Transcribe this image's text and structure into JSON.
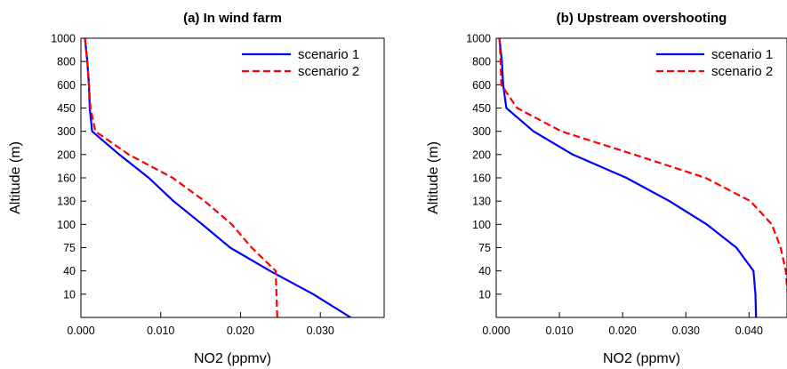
{
  "chart_data": [
    {
      "type": "line",
      "title": "(a)   In wind farm",
      "xlabel": "NO2 (ppmv)",
      "ylabel": "Altitude (m)",
      "xlim": [
        0.0,
        0.038
      ],
      "xticks": [
        0.0,
        0.01,
        0.02,
        0.03
      ],
      "xtick_labels": [
        "0.000",
        "0.010",
        "0.020",
        "0.030"
      ],
      "y_categories": [
        "",
        "10",
        "40",
        "75",
        "100",
        "130",
        "160",
        "200",
        "300",
        "450",
        "600",
        "800",
        "1000"
      ],
      "grid": false,
      "legend": "top-right",
      "series": [
        {
          "name": "scenario 1",
          "color": "#0000ff",
          "dash": "solid",
          "values": [
            0.0338,
            0.0291,
            0.0237,
            0.0187,
            0.0152,
            0.0116,
            0.0085,
            0.0048,
            0.0014,
            0.0011,
            0.001,
            0.0008,
            0.0005
          ]
        },
        {
          "name": "scenario 2",
          "color": "#ff0000",
          "dash": "dashed",
          "values": [
            0.0246,
            0.0245,
            0.0244,
            0.0214,
            0.0189,
            0.0155,
            0.0115,
            0.006,
            0.0018,
            0.0012,
            0.001,
            0.0008,
            0.0005
          ]
        }
      ]
    },
    {
      "type": "line",
      "title": "(b)   Upstream overshooting",
      "xlabel": "NO2 (ppmv)",
      "ylabel": "Altitude (m)",
      "xlim": [
        0.0,
        0.046
      ],
      "xticks": [
        0.0,
        0.01,
        0.02,
        0.03,
        0.04
      ],
      "xtick_labels": [
        "0.000",
        "0.010",
        "0.020",
        "0.030",
        "0.040"
      ],
      "y_categories": [
        "",
        "10",
        "40",
        "75",
        "100",
        "130",
        "160",
        "200",
        "300",
        "450",
        "600",
        "800",
        "1000"
      ],
      "grid": false,
      "legend": "top-right",
      "series": [
        {
          "name": "scenario 1",
          "color": "#0000ff",
          "dash": "solid",
          "values": [
            0.0411,
            0.041,
            0.0407,
            0.038,
            0.0333,
            0.0274,
            0.0206,
            0.0121,
            0.0059,
            0.0016,
            0.0011,
            0.0009,
            0.0005
          ]
        },
        {
          "name": "scenario 2",
          "color": "#ff0000",
          "dash": "dashed",
          "values": [
            0.0461,
            0.0461,
            0.0458,
            0.045,
            0.0436,
            0.0402,
            0.0331,
            0.0218,
            0.0103,
            0.0033,
            0.0008,
            0.0007,
            0.0005
          ]
        }
      ]
    }
  ]
}
